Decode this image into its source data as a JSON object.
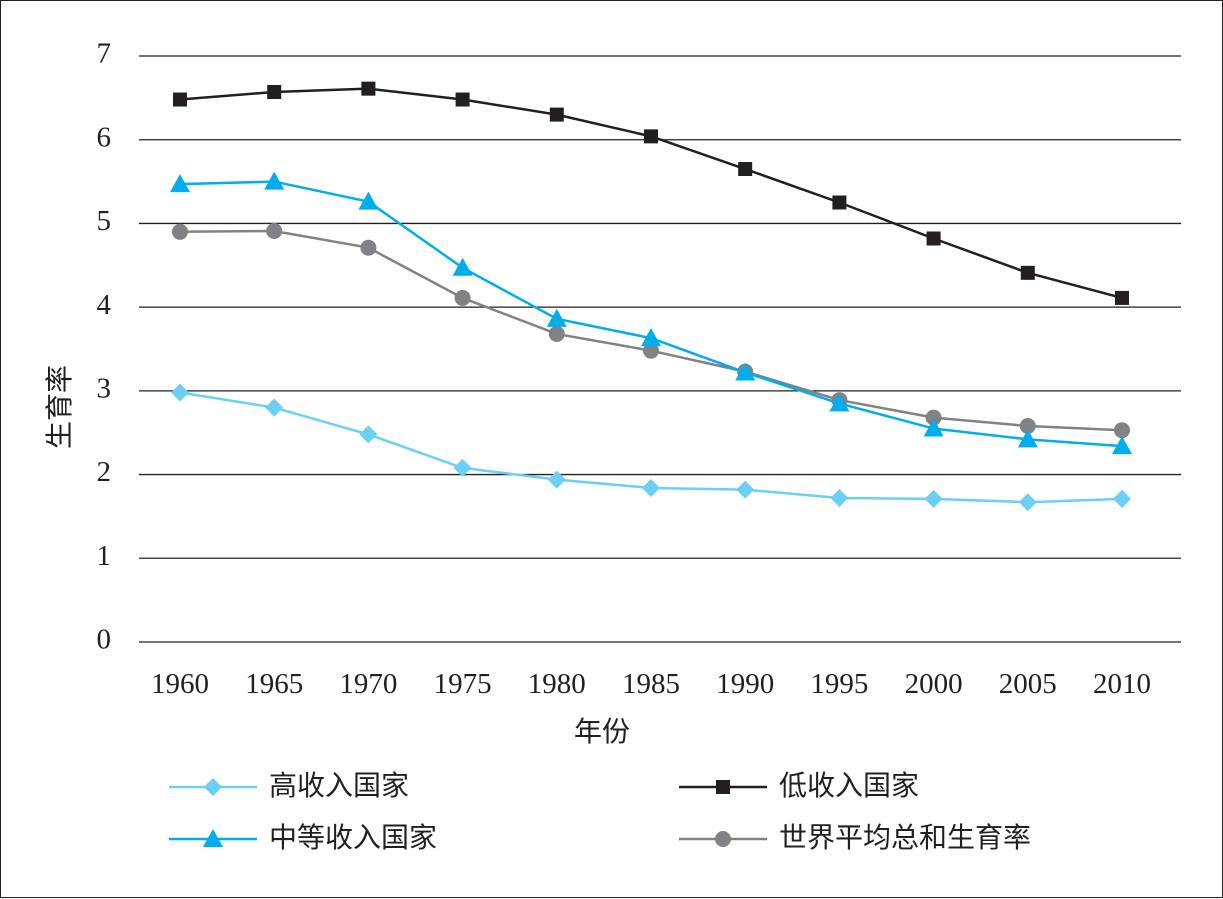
{
  "chart_data": {
    "type": "line",
    "title": "",
    "xlabel": "年份",
    "ylabel": "生育率",
    "categories": [
      "1960",
      "1965",
      "1970",
      "1975",
      "1980",
      "1985",
      "1990",
      "1995",
      "2000",
      "2005",
      "2010"
    ],
    "ylim": [
      0,
      7
    ],
    "yticks": [
      "0",
      "1",
      "2",
      "3",
      "4",
      "5",
      "6",
      "7"
    ],
    "grid": "horizontal",
    "legend_position": "bottom",
    "series": [
      {
        "name": "高收入国家",
        "marker": "diamond",
        "color": "#6ccff6",
        "values": [
          2.98,
          2.8,
          2.48,
          2.08,
          1.94,
          1.84,
          1.82,
          1.72,
          1.71,
          1.67,
          1.71
        ]
      },
      {
        "name": "低收入国家",
        "marker": "square",
        "color": "#231f20",
        "values": [
          6.48,
          6.57,
          6.61,
          6.48,
          6.3,
          6.04,
          5.65,
          5.25,
          4.82,
          4.41,
          4.11
        ]
      },
      {
        "name": "中等收入国家",
        "marker": "triangle",
        "color": "#00aeef",
        "values": [
          5.47,
          5.5,
          5.26,
          4.47,
          3.86,
          3.63,
          3.22,
          2.85,
          2.55,
          2.42,
          2.34
        ]
      },
      {
        "name": "世界平均总和生育率",
        "marker": "circle",
        "color": "#808285",
        "values": [
          4.9,
          4.91,
          4.71,
          4.11,
          3.68,
          3.48,
          3.23,
          2.89,
          2.68,
          2.58,
          2.53
        ]
      }
    ]
  }
}
